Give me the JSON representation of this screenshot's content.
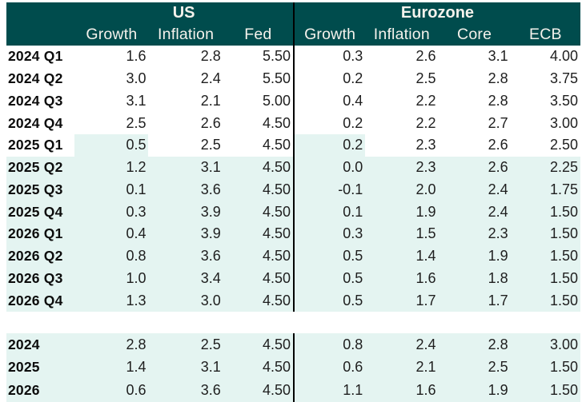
{
  "colors": {
    "header_bg": "#004c4d",
    "header_text": "#f5f2ec",
    "highlight_bg": "#e4f4f1",
    "divider": "#000000",
    "body_text": "#1e1e1e",
    "label_text": "#0c0c0c"
  },
  "chart_data": {
    "type": "table",
    "column_groups": [
      {
        "label": "US",
        "columns": [
          "Growth",
          "Inflation",
          "Fed"
        ]
      },
      {
        "label": "Eurozone",
        "columns": [
          "Growth",
          "Inflation",
          "Core",
          "ECB"
        ]
      }
    ],
    "quarterly_rows": [
      {
        "label": "2024 Q1",
        "us": [
          "1.6",
          "2.8",
          "5.50"
        ],
        "ez": [
          "0.3",
          "2.6",
          "3.1",
          "4.00"
        ],
        "highlight": "none"
      },
      {
        "label": "2024 Q2",
        "us": [
          "3.0",
          "2.4",
          "5.50"
        ],
        "ez": [
          "0.2",
          "2.5",
          "2.8",
          "3.75"
        ],
        "highlight": "none"
      },
      {
        "label": "2024 Q3",
        "us": [
          "3.1",
          "2.1",
          "5.00"
        ],
        "ez": [
          "0.4",
          "2.2",
          "2.8",
          "3.50"
        ],
        "highlight": "none"
      },
      {
        "label": "2024 Q4",
        "us": [
          "2.5",
          "2.6",
          "4.50"
        ],
        "ez": [
          "0.2",
          "2.2",
          "2.7",
          "3.00"
        ],
        "highlight": "none"
      },
      {
        "label": "2025 Q1",
        "us": [
          "0.5",
          "2.5",
          "4.50"
        ],
        "ez": [
          "0.2",
          "2.3",
          "2.6",
          "2.50"
        ],
        "highlight": "growth"
      },
      {
        "label": "2025 Q2",
        "us": [
          "1.2",
          "3.1",
          "4.50"
        ],
        "ez": [
          "0.0",
          "2.3",
          "2.6",
          "2.25"
        ],
        "highlight": "full"
      },
      {
        "label": "2025 Q3",
        "us": [
          "0.1",
          "3.6",
          "4.50"
        ],
        "ez": [
          "-0.1",
          "2.0",
          "2.4",
          "1.75"
        ],
        "highlight": "full"
      },
      {
        "label": "2025 Q4",
        "us": [
          "0.3",
          "3.9",
          "4.50"
        ],
        "ez": [
          "0.1",
          "1.9",
          "2.4",
          "1.50"
        ],
        "highlight": "full"
      },
      {
        "label": "2026 Q1",
        "us": [
          "0.4",
          "3.9",
          "4.50"
        ],
        "ez": [
          "0.3",
          "1.5",
          "2.3",
          "1.50"
        ],
        "highlight": "full"
      },
      {
        "label": "2026 Q2",
        "us": [
          "0.8",
          "3.6",
          "4.50"
        ],
        "ez": [
          "0.5",
          "1.4",
          "1.9",
          "1.50"
        ],
        "highlight": "full"
      },
      {
        "label": "2026 Q3",
        "us": [
          "1.0",
          "3.4",
          "4.50"
        ],
        "ez": [
          "0.5",
          "1.6",
          "1.8",
          "1.50"
        ],
        "highlight": "full"
      },
      {
        "label": "2026 Q4",
        "us": [
          "1.3",
          "3.0",
          "4.50"
        ],
        "ez": [
          "0.5",
          "1.7",
          "1.7",
          "1.50"
        ],
        "highlight": "full"
      }
    ],
    "annual_rows": [
      {
        "label": "2024",
        "us": [
          "2.8",
          "2.5",
          "4.50"
        ],
        "ez": [
          "0.8",
          "2.4",
          "2.8",
          "3.00"
        ],
        "highlight": "full"
      },
      {
        "label": "2025",
        "us": [
          "1.4",
          "3.1",
          "4.50"
        ],
        "ez": [
          "0.6",
          "2.1",
          "2.5",
          "1.50"
        ],
        "highlight": "full"
      },
      {
        "label": "2026",
        "us": [
          "0.6",
          "3.6",
          "4.50"
        ],
        "ez": [
          "1.1",
          "1.6",
          "1.9",
          "1.50"
        ],
        "highlight": "full"
      }
    ]
  }
}
